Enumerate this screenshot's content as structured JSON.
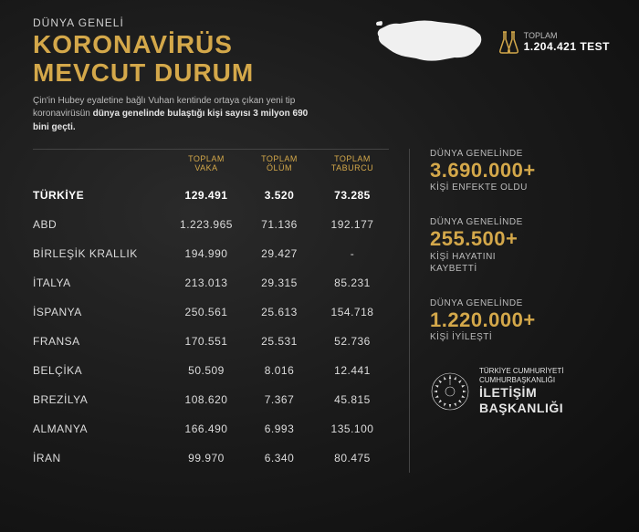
{
  "header": {
    "supertitle": "DÜNYA GENELİ",
    "title_line1": "KORONAVİRÜS",
    "title_line2": "MEVCUT DURUM",
    "subtitle_pre": "Çin'in Hubey eyaletine bağlı Vuhan kentinde ortaya çıkan yeni tip koronavirüsün ",
    "subtitle_bold": "dünya genelinde bulaştığı kişi sayısı 3 milyon 690 bini geçti."
  },
  "test": {
    "label": "TOPLAM",
    "value": "1.204.421 TEST"
  },
  "table": {
    "headers": {
      "cases_l1": "TOPLAM",
      "cases_l2": "VAKA",
      "deaths_l1": "TOPLAM",
      "deaths_l2": "ÖLÜM",
      "discharged_l1": "TOPLAM",
      "discharged_l2": "TABURCU"
    },
    "rows": [
      {
        "country": "TÜRKİYE",
        "cases": "129.491",
        "deaths": "3.520",
        "discharged": "73.285",
        "highlight": true
      },
      {
        "country": "ABD",
        "cases": "1.223.965",
        "deaths": "71.136",
        "discharged": "192.177"
      },
      {
        "country": "BİRLEŞİK KRALLIK",
        "cases": "194.990",
        "deaths": "29.427",
        "discharged": "-"
      },
      {
        "country": "İTALYA",
        "cases": "213.013",
        "deaths": "29.315",
        "discharged": "85.231"
      },
      {
        "country": "İSPANYA",
        "cases": "250.561",
        "deaths": "25.613",
        "discharged": "154.718"
      },
      {
        "country": "FRANSA",
        "cases": "170.551",
        "deaths": "25.531",
        "discharged": "52.736"
      },
      {
        "country": "BELÇİKA",
        "cases": "50.509",
        "deaths": "8.016",
        "discharged": "12.441"
      },
      {
        "country": "BREZİLYA",
        "cases": "108.620",
        "deaths": "7.367",
        "discharged": "45.815"
      },
      {
        "country": "ALMANYA",
        "cases": "166.490",
        "deaths": "6.993",
        "discharged": "135.100"
      },
      {
        "country": "İRAN",
        "cases": "99.970",
        "deaths": "6.340",
        "discharged": "80.475"
      }
    ]
  },
  "stats": {
    "infected": {
      "pre": "DÜNYA GENELİNDE",
      "value": "3.690.000+",
      "sub": "KİŞİ ENFEKTE OLDU"
    },
    "deaths": {
      "pre": "DÜNYA GENELİNDE",
      "value": "255.500+",
      "sub1": "KİŞİ HAYATINI",
      "sub2": "KAYBETTİ"
    },
    "recovered": {
      "pre": "DÜNYA GENELİNDE",
      "value": "1.220.000+",
      "sub": "KİŞİ İYİLEŞTİ"
    }
  },
  "footer": {
    "line1": "TÜRKİYE CUMHURİYETİ",
    "line2": "CUMHURBAŞKANLIĞI",
    "line3": "İLETİŞİM",
    "line4": "BAŞKANLIĞI"
  },
  "colors": {
    "accent": "#d4a84a",
    "text": "#e5e5e5",
    "muted": "#bcbcbc",
    "bg_dark": "#0d0d0d"
  }
}
